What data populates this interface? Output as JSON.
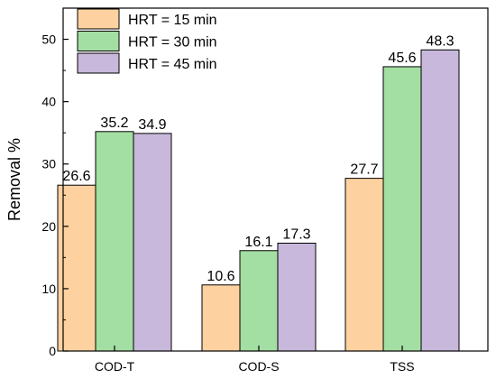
{
  "chart_data": {
    "type": "bar",
    "title": "",
    "xlabel": "",
    "ylabel": "Removal %",
    "ylim": [
      0,
      55
    ],
    "yticks": [
      0,
      10,
      20,
      30,
      40,
      50
    ],
    "grid": false,
    "legend_position": "top-left",
    "categories": [
      "COD-T",
      "COD-S",
      "TSS"
    ],
    "series": [
      {
        "name": "HRT = 15 min",
        "color": "#fdd2a0",
        "values": [
          26.6,
          10.6,
          27.7
        ],
        "labels": [
          "26.6",
          "10.6",
          "27.7"
        ]
      },
      {
        "name": "HRT = 30 min",
        "color": "#a3dea2",
        "values": [
          35.2,
          16.1,
          45.6
        ],
        "labels": [
          "35.2",
          "16.1",
          "45.6"
        ]
      },
      {
        "name": "HRT = 45 min",
        "color": "#c8b8dc",
        "values": [
          34.9,
          17.3,
          48.3
        ],
        "labels": [
          "34.9",
          "17.3",
          "48.3"
        ]
      }
    ]
  }
}
